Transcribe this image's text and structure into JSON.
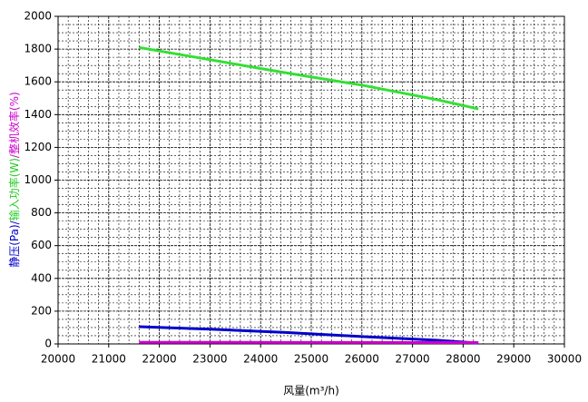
{
  "chart_data": {
    "type": "line",
    "x_label": "风量(m³/h)",
    "y_label_parts": [
      {
        "text": "静压(Pa)/",
        "color": "#0000cc"
      },
      {
        "text": "输入功率(W)",
        "color": "#22cc22"
      },
      {
        "text": "/整机效率(%)",
        "color": "#cc00cc"
      }
    ],
    "x": [
      21600,
      23000,
      24500,
      26000,
      27500,
      28300
    ],
    "series": [
      {
        "color": "#33e033",
        "values": [
          1810,
          1735,
          1655,
          1580,
          1490,
          1435
        ]
      },
      {
        "color": "#0000cc",
        "values": [
          105,
          90,
          70,
          45,
          22,
          5
        ]
      },
      {
        "color": "#cc00cc",
        "values": [
          10,
          10,
          9,
          9,
          8,
          8
        ]
      }
    ],
    "xlim": [
      20000,
      30000
    ],
    "xticks": [
      20000,
      21000,
      22000,
      23000,
      24000,
      25000,
      26000,
      27000,
      28000,
      29000,
      30000
    ],
    "ylim": [
      0,
      2000
    ],
    "yticks": [
      0,
      200,
      400,
      600,
      800,
      1000,
      1200,
      1400,
      1600,
      1800,
      2000
    ],
    "grid": true
  }
}
